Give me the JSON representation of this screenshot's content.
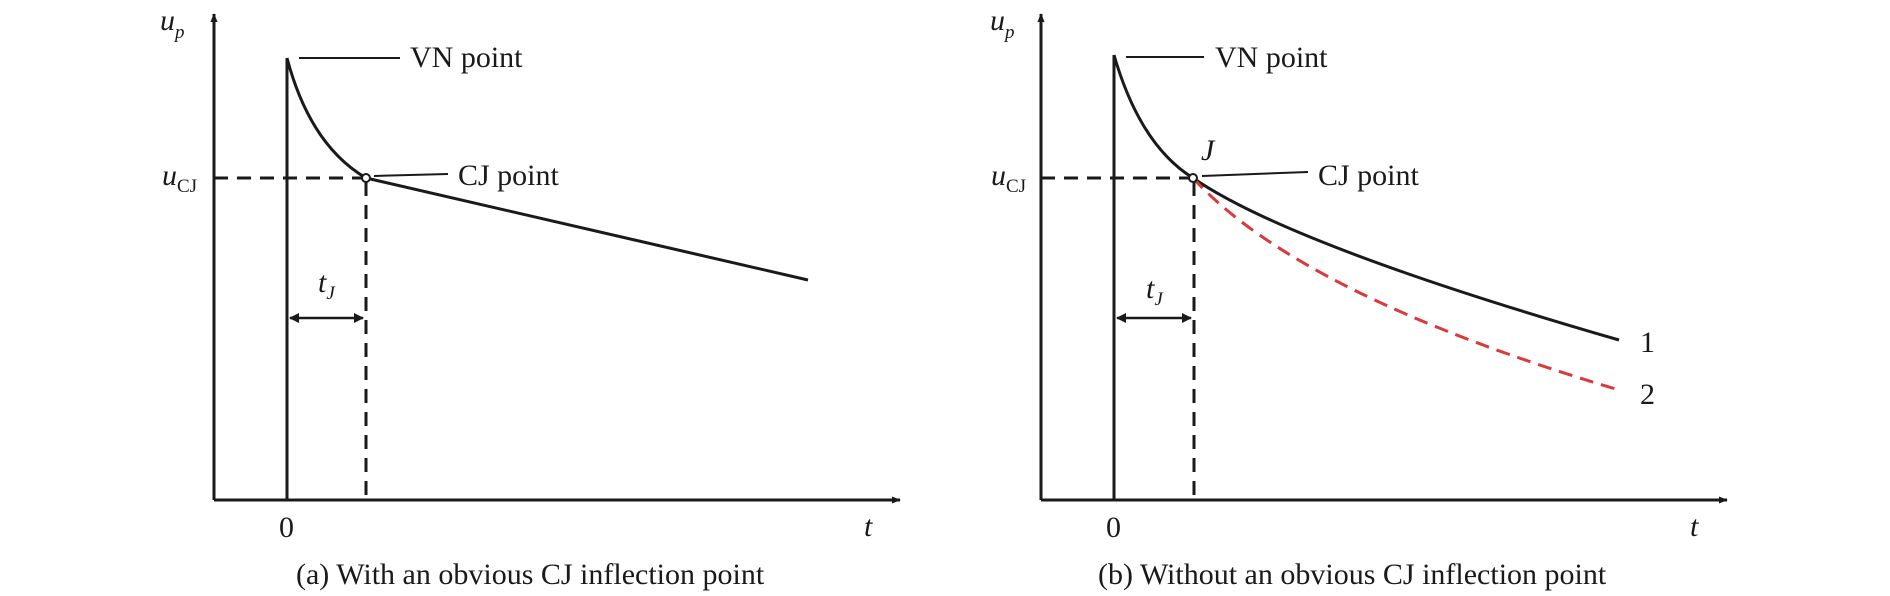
{
  "colors": {
    "ink": "#1a1a1a",
    "accent": "#d93a3a"
  },
  "panel_a": {
    "caption": "(a) With an obvious CJ inflection point",
    "y_axis": {
      "main": "u",
      "sub": "p"
    },
    "x_axis": "t",
    "origin": "0",
    "ucj": {
      "main": "u",
      "sub": "CJ"
    },
    "vn_label": "VN point",
    "cj_label": "CJ point",
    "tj": {
      "main": "t",
      "sub": "J"
    }
  },
  "panel_b": {
    "caption": "(b) Without an obvious CJ inflection point",
    "y_axis": {
      "main": "u",
      "sub": "p"
    },
    "x_axis": "t",
    "origin": "0",
    "ucj": {
      "main": "u",
      "sub": "CJ"
    },
    "vn_label": "VN point",
    "cj_label": "CJ point",
    "j_label": "J",
    "tj": {
      "main": "t",
      "sub": "J"
    },
    "curve_labels": [
      "1",
      "2"
    ]
  }
}
